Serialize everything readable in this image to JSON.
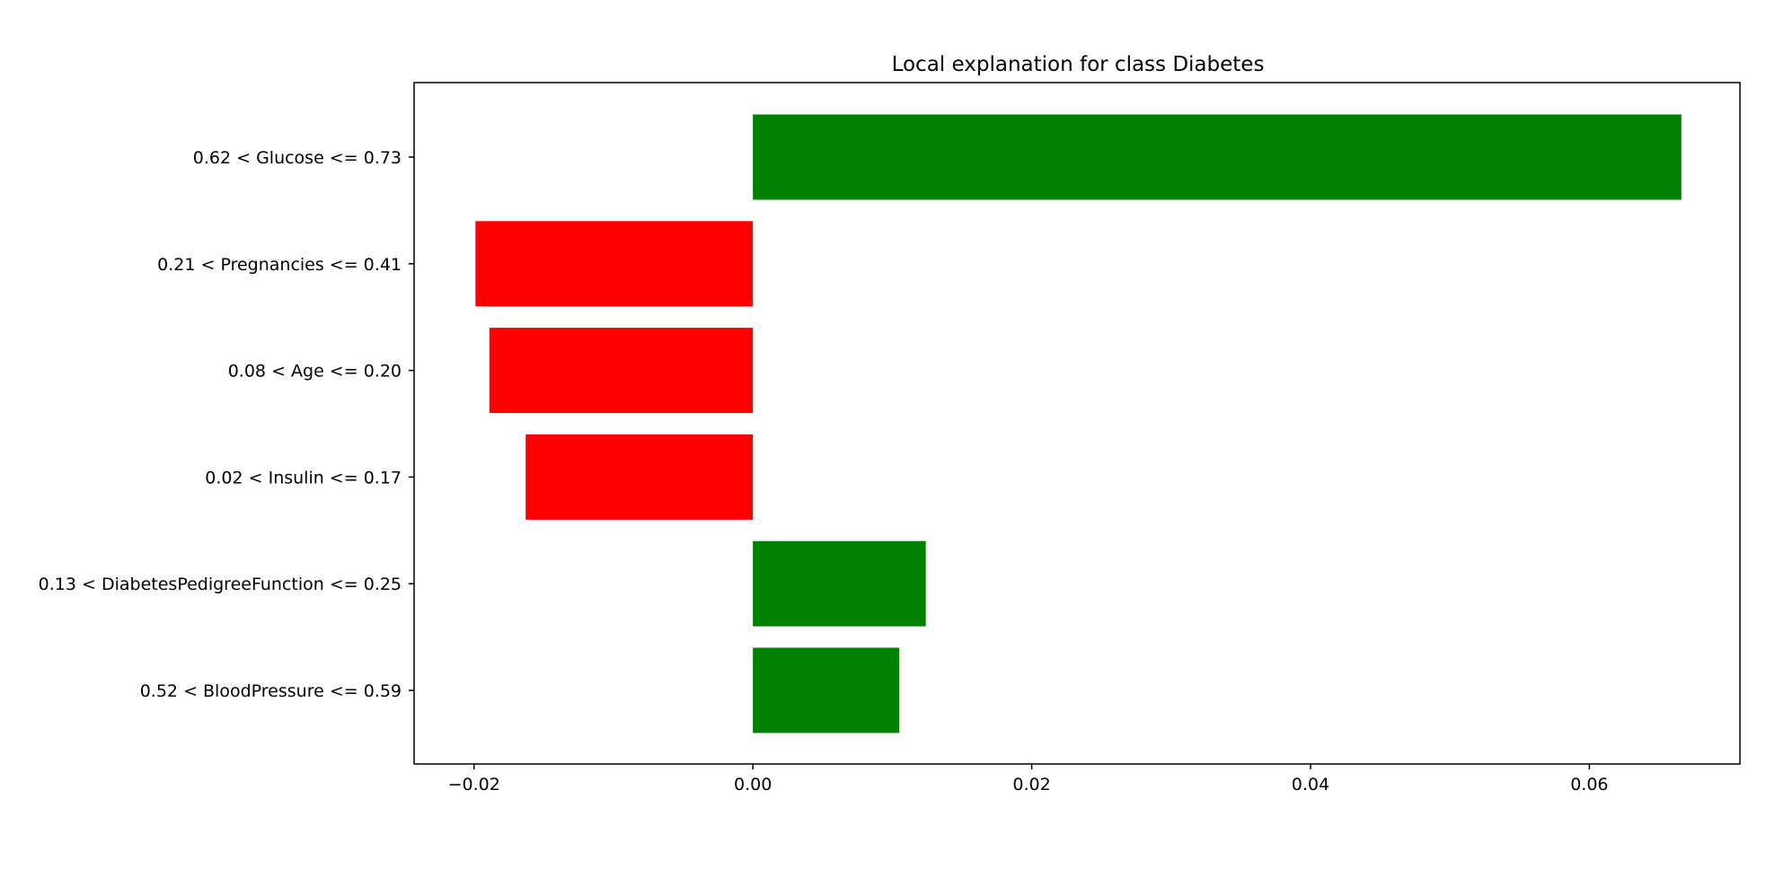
{
  "chart_data": {
    "type": "bar",
    "orientation": "horizontal",
    "title": "Local explanation for class Diabetes",
    "xlabel": "",
    "ylabel": "",
    "categories": [
      "0.62 < Glucose <= 0.73",
      "0.21 < Pregnancies <= 0.41",
      "0.08 < Age <= 0.20",
      "0.02 < Insulin <= 0.17",
      "0.13 < DiabetesPedigreeFunction <= 0.25",
      "0.52 < BloodPressure <= 0.59"
    ],
    "values": [
      0.0666,
      -0.0199,
      -0.0189,
      -0.0163,
      0.0124,
      0.0105
    ],
    "xlim": [
      -0.0243,
      0.0708
    ],
    "xticks": [
      -0.02,
      0.0,
      0.02,
      0.04,
      0.06
    ],
    "xtick_labels": [
      "−0.02",
      "0.00",
      "0.02",
      "0.04",
      "0.06"
    ],
    "colors": {
      "positive": "#008000",
      "negative": "#ff0000",
      "axis": "#000000"
    },
    "grid": false,
    "legend": "none"
  }
}
